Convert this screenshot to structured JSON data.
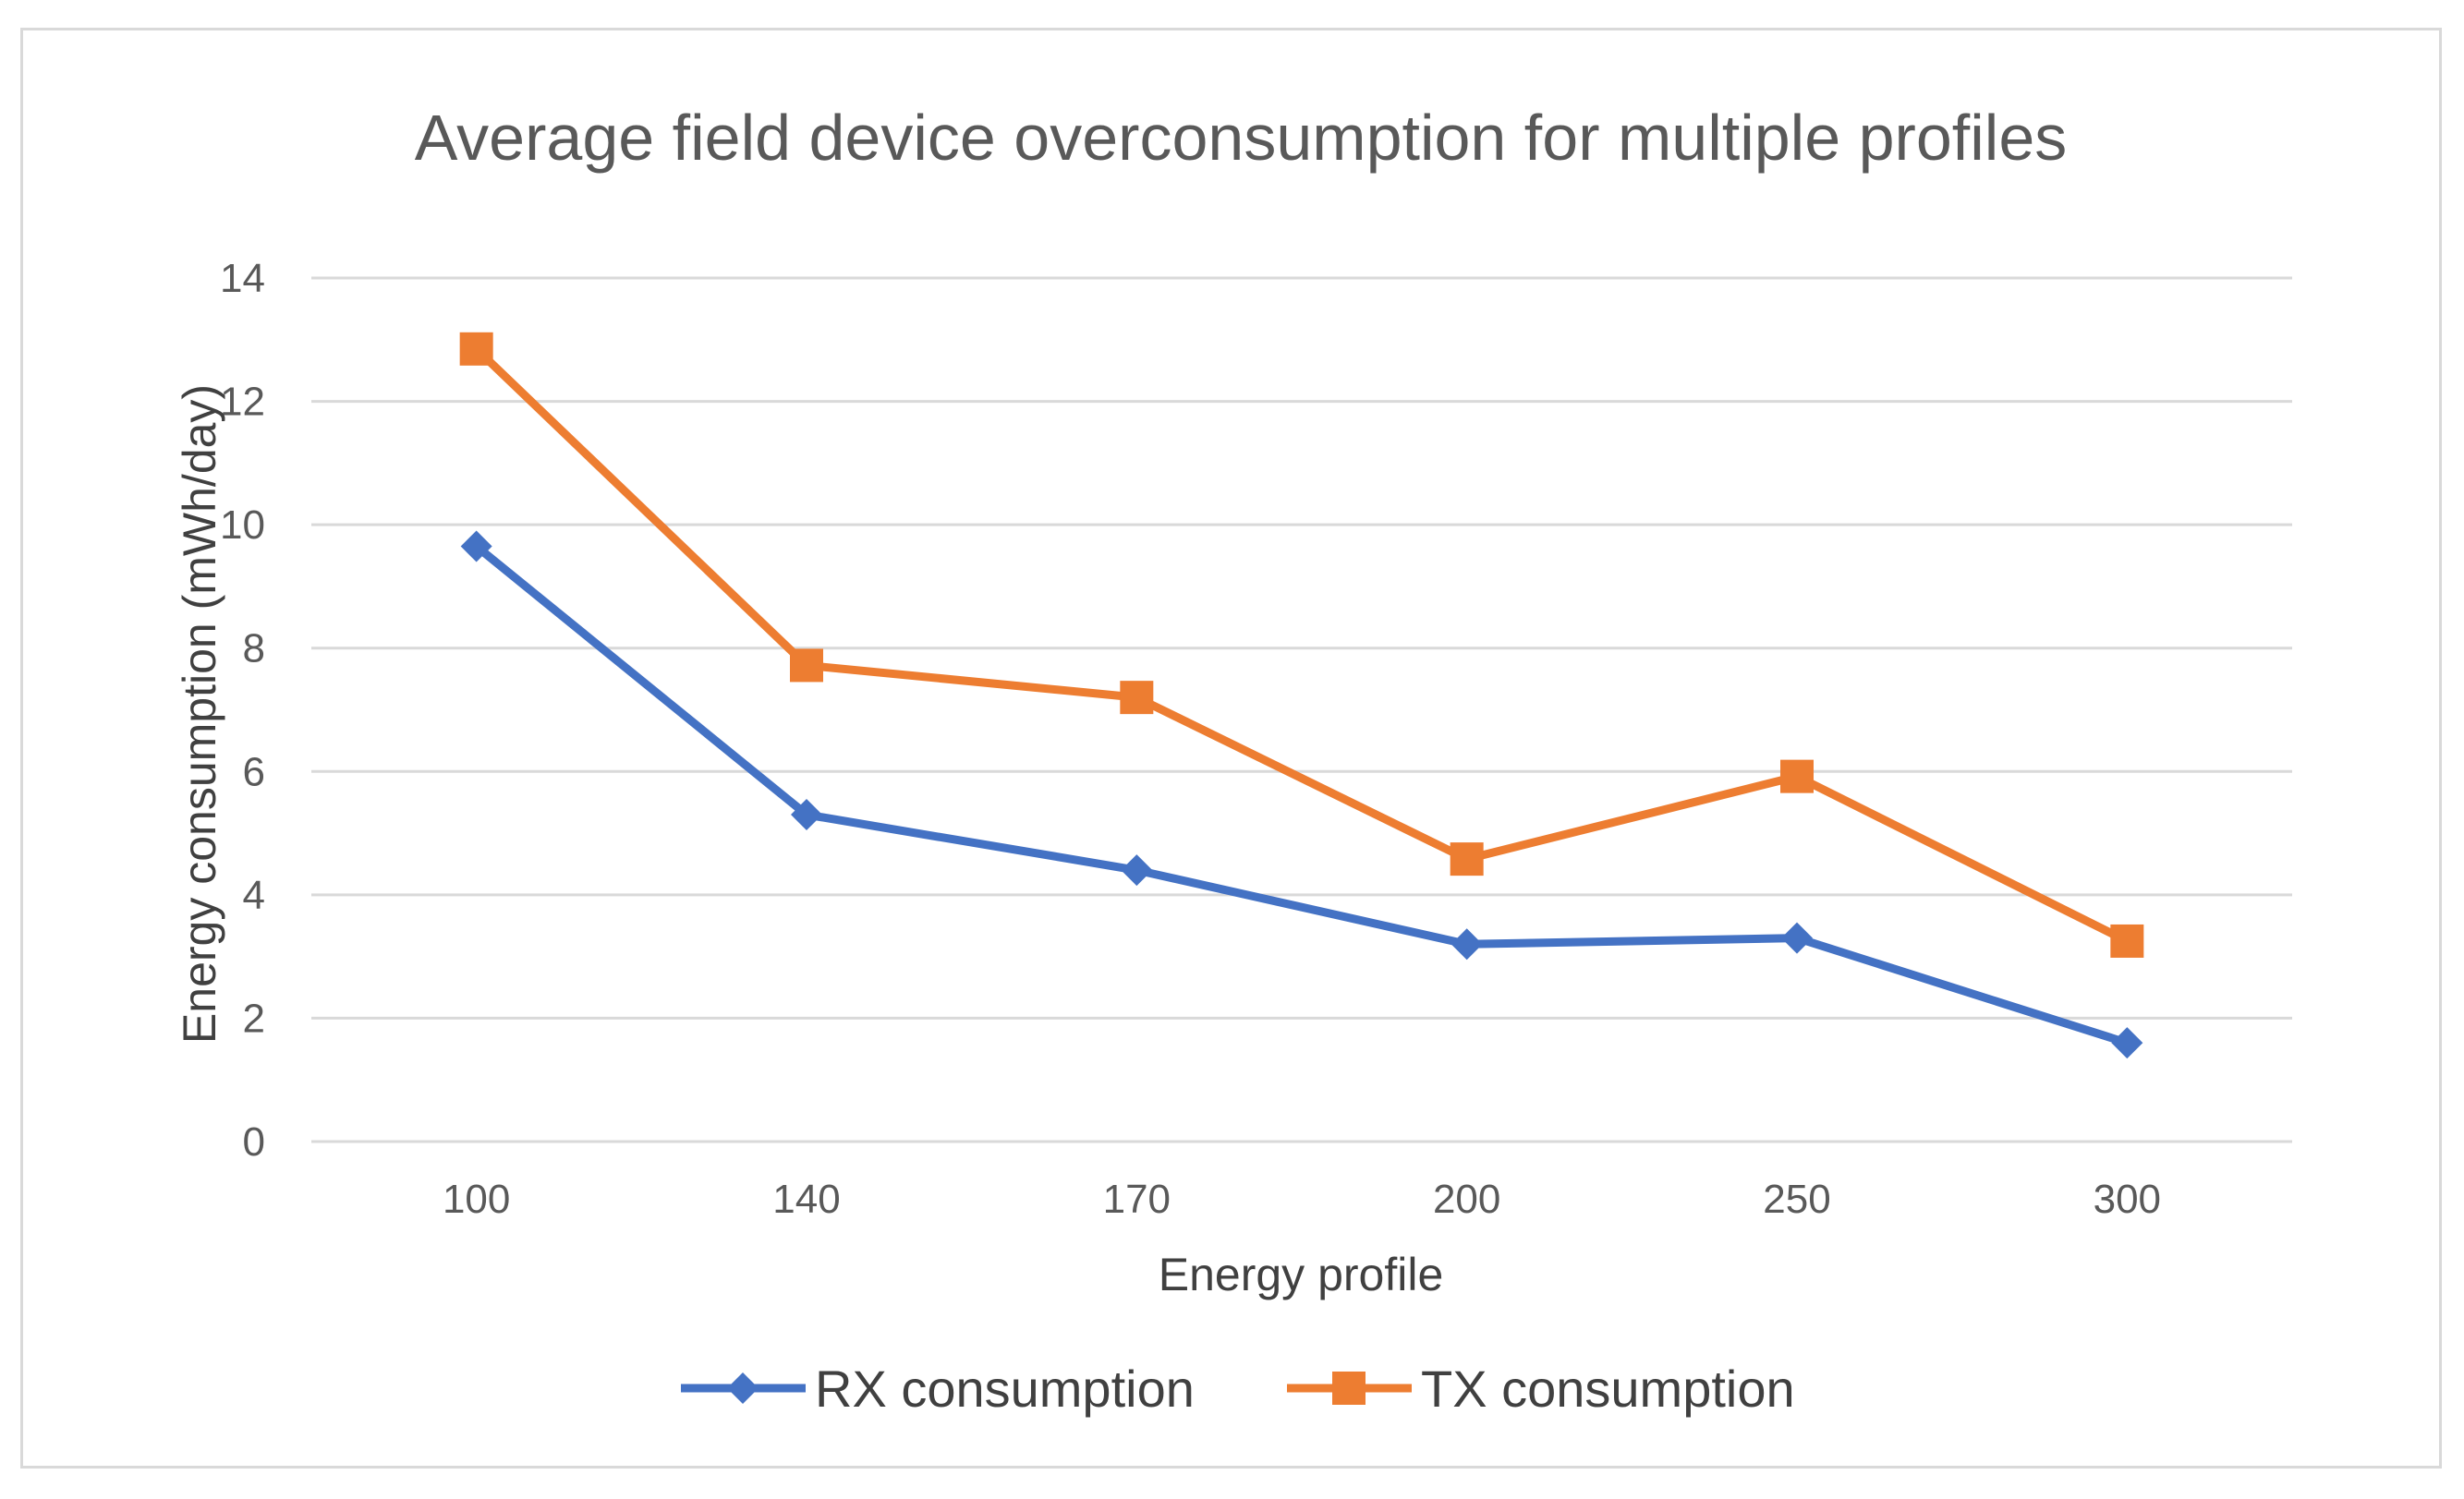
{
  "chart_data": {
    "type": "line",
    "title": "Average field device overconsumption for multiple profiles",
    "xlabel": "Energy profile",
    "ylabel": "Energy consumption (mWh/day)",
    "categories": [
      "100",
      "140",
      "170",
      "200",
      "250",
      "300"
    ],
    "ylim": [
      0,
      14
    ],
    "yticks": [
      0,
      2,
      4,
      6,
      8,
      10,
      12,
      14
    ],
    "ytick_labels": [
      "0",
      "2",
      "4",
      "6",
      "8",
      "10",
      "12",
      "14"
    ],
    "grid": true,
    "legend_position": "bottom",
    "series": [
      {
        "name": "RX consumption",
        "legend_label": "RX consumption",
        "color": "#4472c4",
        "marker": "diamond",
        "values": [
          9.65,
          5.3,
          4.4,
          3.2,
          3.3,
          1.6
        ]
      },
      {
        "name": "TX consumption",
        "legend_label": "TX consumption",
        "color": "#ed7d31",
        "marker": "square",
        "values": [
          12.85,
          7.72,
          7.2,
          4.58,
          5.92,
          3.25
        ]
      }
    ]
  }
}
